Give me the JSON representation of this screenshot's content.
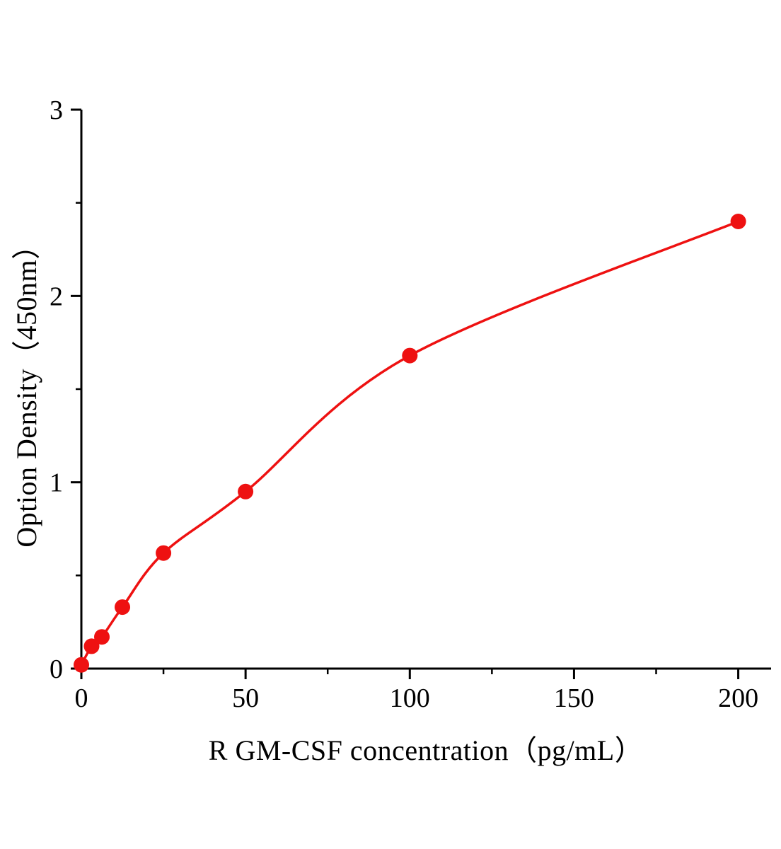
{
  "page": {
    "background_color": "#ffffff"
  },
  "chart_data": {
    "type": "scatter",
    "subtype": "scatter-with-fitted-curve",
    "title": "",
    "xlabel": "R GM-CSF concentration（pg/mL）",
    "ylabel": "Option Density（450nm）",
    "x": [
      0,
      3.125,
      6.25,
      12.5,
      25,
      50,
      100,
      200
    ],
    "y": [
      0.02,
      0.12,
      0.17,
      0.33,
      0.62,
      0.95,
      1.68,
      2.4
    ],
    "xlim": [
      0,
      210
    ],
    "ylim": [
      0,
      3
    ],
    "xticks": [
      0,
      50,
      100,
      150,
      200
    ],
    "yticks": [
      0,
      1,
      2,
      3
    ],
    "x_minor_ticks": [
      25,
      75,
      125,
      175
    ],
    "y_minor_ticks": [
      0.5,
      1.5,
      2.5
    ],
    "grid": false,
    "legend": "none",
    "curve_color": "#ee1111",
    "marker_color": "#ee1111",
    "axis_color": "#000000",
    "marker_radius": 11
  }
}
